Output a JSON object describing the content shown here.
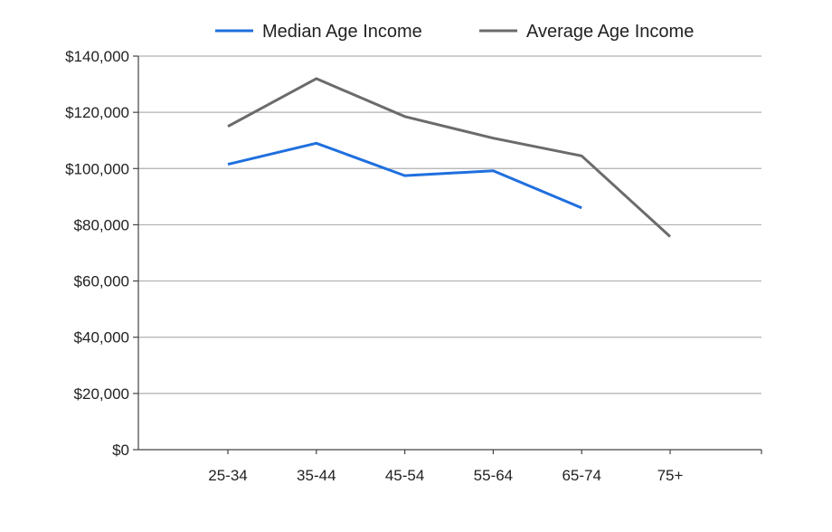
{
  "chart_data": {
    "type": "line",
    "categories": [
      "25-34",
      "35-44",
      "45-54",
      "55-64",
      "65-74",
      "75+"
    ],
    "series": [
      {
        "name": "Median Age Income",
        "color": "#1f6fde",
        "values": [
          101500,
          109000,
          97500,
          99200,
          86000,
          null
        ]
      },
      {
        "name": "Average Age Income",
        "color": "#6b6b6b",
        "values": [
          115000,
          132000,
          118500,
          110800,
          104500,
          75800
        ]
      }
    ],
    "y_ticks": [
      "$0",
      "$20,000",
      "$40,000",
      "$60,000",
      "$80,000",
      "$100,000",
      "$120,000",
      "$140,000"
    ],
    "y_tick_values": [
      0,
      20000,
      40000,
      60000,
      80000,
      100000,
      120000,
      140000
    ],
    "ylim": [
      0,
      140000
    ],
    "grid": true,
    "legend_position": "top-right",
    "gridline_color": "#b0b0b0",
    "axis_color": "#444444"
  }
}
